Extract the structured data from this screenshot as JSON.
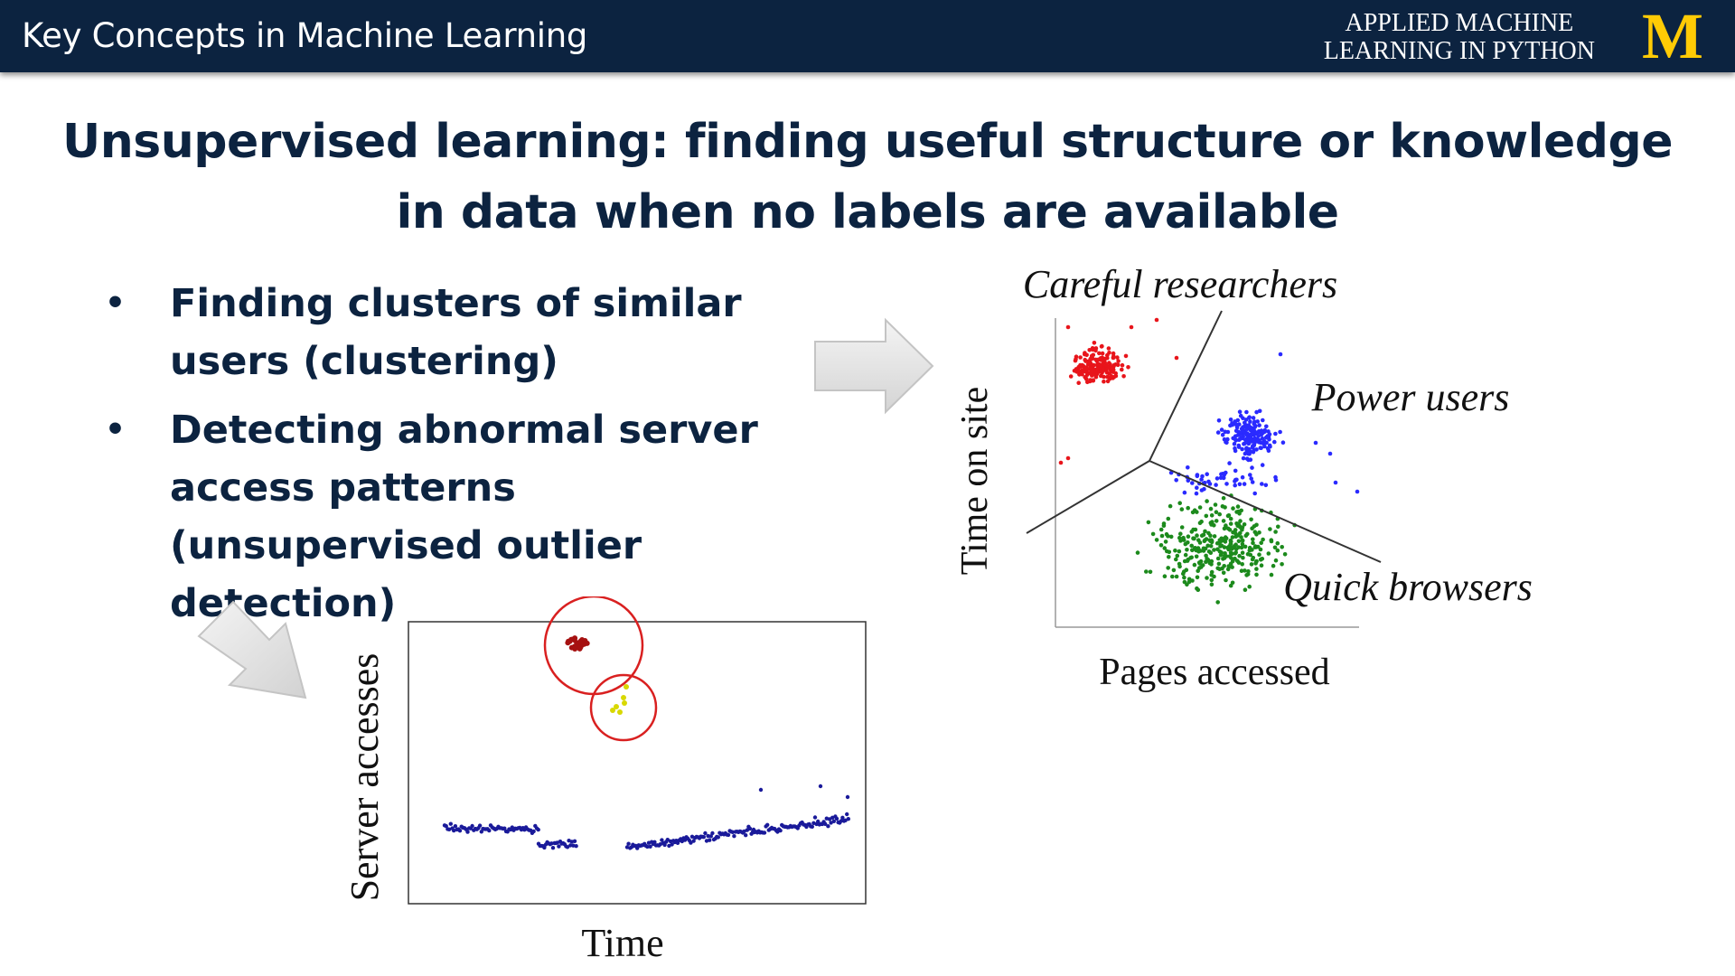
{
  "header": {
    "course_title": "Key Concepts in Machine Learning",
    "org_line1": "APPLIED MACHINE",
    "org_line2": "LEARNING IN PYTHON",
    "logo_letter": "M",
    "bar_color": "#0c2340",
    "logo_color": "#ffcb05"
  },
  "headline": {
    "line1": "Unsupervised learning: finding useful structure or knowledge",
    "line2": "in data when no labels are available"
  },
  "bullets": [
    {
      "text": "Finding clusters of similar users (clustering)"
    },
    {
      "text": "Detecting abnormal server access patterns (unsupervised outlier detection)"
    }
  ],
  "bullet_symbol": "•",
  "icons": [
    "arrow-right-icon",
    "arrow-down-right-icon"
  ],
  "chart_data": [
    {
      "type": "scatter",
      "xlabel": "Pages accessed",
      "ylabel": "Time on site",
      "series": [
        {
          "name": "Careful researchers",
          "color": "#e8151b"
        },
        {
          "name": "Power users",
          "color": "#2a2aff"
        },
        {
          "name": "Quick browsers",
          "color": "#1c8a1c"
        }
      ],
      "grid": false,
      "legend": "annotations"
    },
    {
      "type": "scatter",
      "xlabel": "Time",
      "ylabel": "Server accesses",
      "series": [
        {
          "color": "#1a1a9a"
        },
        {
          "color": "#a61111"
        },
        {
          "color": "#d8d800"
        }
      ],
      "highlight_color": "#d92020",
      "grid": false
    }
  ]
}
